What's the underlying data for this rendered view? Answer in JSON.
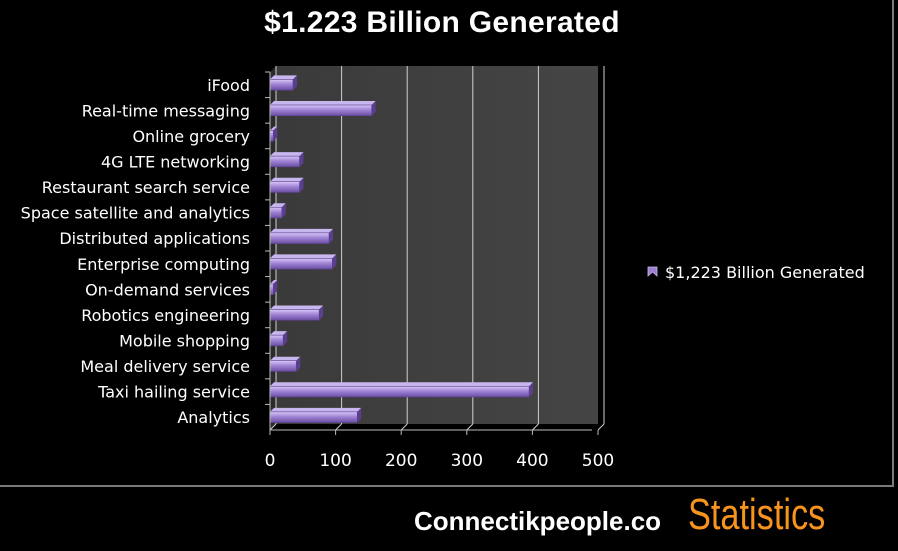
{
  "title": "$1.223 Billion Generated",
  "footer": {
    "brand": "Connectikpeople.co",
    "tag": "Statistics"
  },
  "colors": {
    "background": "#000000",
    "plot_area": "#3d3d3d",
    "bar_fill": "#9b7fd0",
    "bar_top": "#c8b6ee",
    "bar_shadow": "#5b3f8f",
    "grid": "#d0d0d0",
    "footer_tag": "#f7941d"
  },
  "chart_data": {
    "type": "bar",
    "orientation": "horizontal",
    "categories": [
      "iFood",
      "Real-time messaging",
      "Online grocery",
      "4G LTE networking",
      "Restaurant search service",
      "Space satellite and analytics",
      "Distributed applications",
      "Enterprise computing",
      "On-demand services",
      "Robotics engineering",
      "Mobile shopping",
      "Meal delivery service",
      "Taxi hailing service",
      "Analytics"
    ],
    "series": [
      {
        "name": "$1,223 Billion Generated",
        "values": [
          35,
          155,
          5,
          45,
          45,
          18,
          90,
          95,
          5,
          75,
          20,
          40,
          395,
          133
        ]
      }
    ],
    "xlim": [
      0,
      500
    ],
    "xticks": [
      0,
      100,
      200,
      300,
      400,
      500
    ],
    "grid": true,
    "legend_position": "right"
  }
}
